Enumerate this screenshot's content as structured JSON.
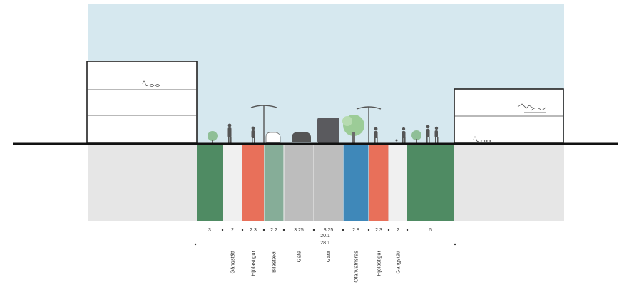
{
  "colors": {
    "sky": "#d6e8ef",
    "ground": "#e6e6e6",
    "green_strip": "#4f8b63",
    "bike_lane": "#e8705a",
    "parking": "#86ad98",
    "street": "#bdbdbd",
    "stormwater": "#3f88b9",
    "sidewalk": "#f0f0f0"
  },
  "street_section": {
    "segments": [
      {
        "kind": "green",
        "width": "3",
        "label": ""
      },
      {
        "kind": "sidewalk",
        "width": "2",
        "label": "Gångstått"
      },
      {
        "kind": "bike",
        "width": "2.3",
        "label": "Hjölastigur"
      },
      {
        "kind": "parking",
        "width": "2.2",
        "label": "Bilastæði"
      },
      {
        "kind": "street",
        "width": "3.25",
        "label": "Gata"
      },
      {
        "kind": "street",
        "width": "3.25",
        "label": "Gata"
      },
      {
        "kind": "stormwater",
        "width": "2.8",
        "label": "Ofanvatnsrás"
      },
      {
        "kind": "bike",
        "width": "2.3",
        "label": "Hjólastigur"
      },
      {
        "kind": "sidewalk",
        "width": "2",
        "label": "Gangstétt"
      },
      {
        "kind": "green",
        "width": "5",
        "label": ""
      }
    ],
    "subtotal": "20.1",
    "total": "28.1"
  },
  "icons": [
    "building-left",
    "building-right",
    "tree",
    "street-lamp",
    "pedestrian",
    "car",
    "bus",
    "figure-sketch"
  ]
}
